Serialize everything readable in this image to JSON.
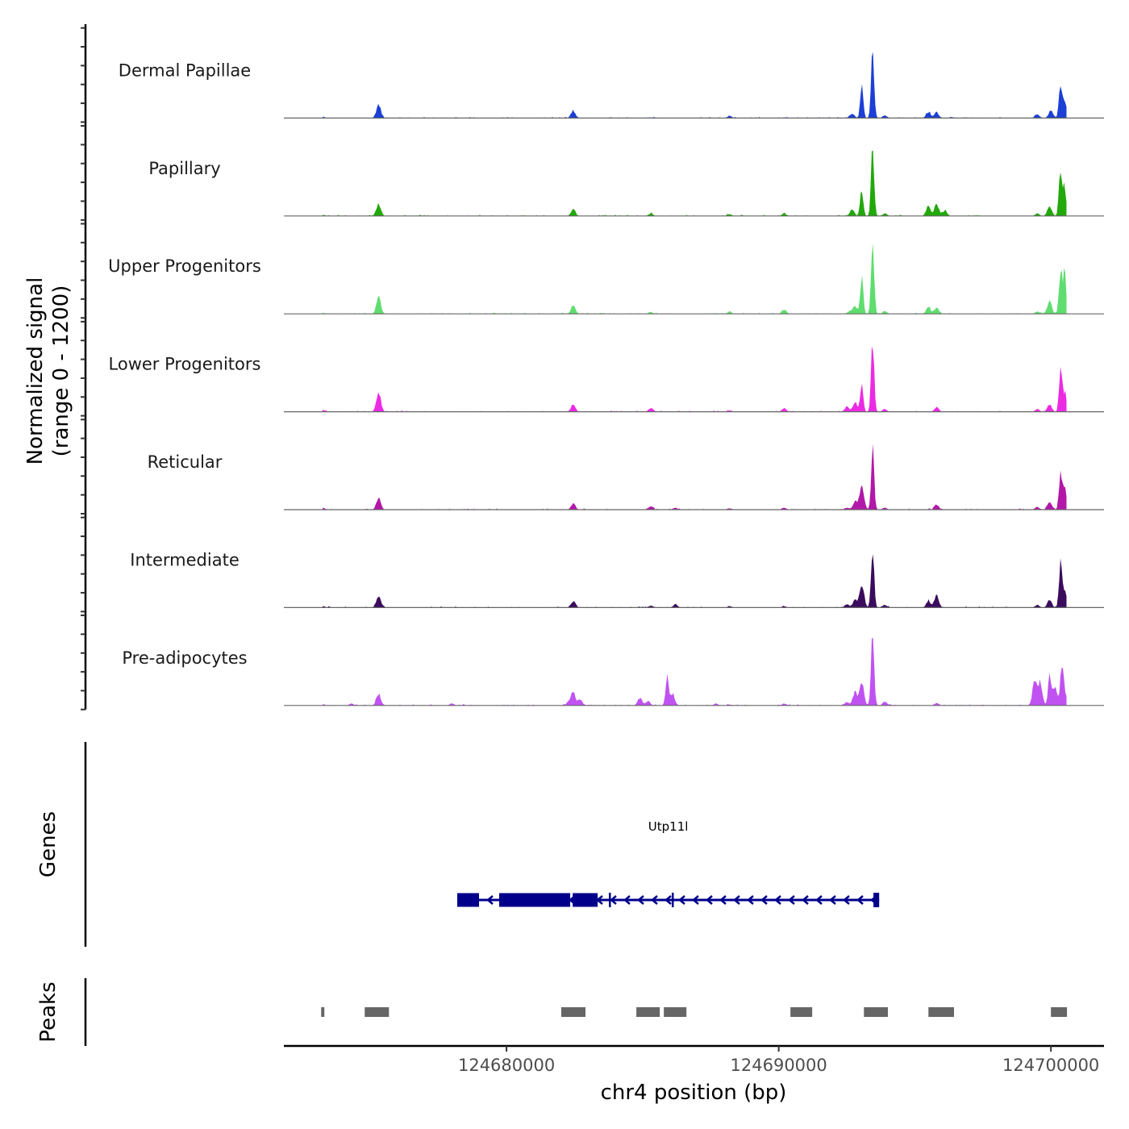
{
  "chart_data": {
    "type": "area",
    "title": "",
    "ylabel_line1": "Normalized signal",
    "ylabel_line2": "(range 0 - 1200)",
    "ylim": [
      0,
      1200
    ],
    "xlabel": "chr4 position (bp)",
    "xlim": [
      124671820,
      124701950
    ],
    "x_ticks": [
      124680000,
      124690000,
      124700000
    ],
    "x_tick_labels": [
      "124680000",
      "124690000",
      "124700000"
    ],
    "grid": false,
    "legend": "none",
    "peak_centers": [
      124673250,
      124675300,
      124682450,
      124684900,
      124685950,
      124688800,
      124690200,
      124692700,
      124693050,
      124693500,
      124694050,
      124695650,
      124696000,
      124699500,
      124699950,
      124700350
    ],
    "tracks": [
      {
        "name": "Dermal Papillae",
        "color": "#1c3fd6",
        "peaks": [
          [
            124673250,
            18
          ],
          [
            124675300,
            220
          ],
          [
            124682450,
            120
          ],
          [
            124685300,
            10
          ],
          [
            124688200,
            30
          ],
          [
            124690200,
            10
          ],
          [
            124692700,
            70
          ],
          [
            124693050,
            480
          ],
          [
            124693450,
            1060
          ],
          [
            124693900,
            40
          ],
          [
            124695500,
            100
          ],
          [
            124695800,
            90
          ],
          [
            124699500,
            60
          ],
          [
            124700000,
            120
          ],
          [
            124700350,
            540
          ],
          [
            124700500,
            260
          ]
        ]
      },
      {
        "name": "Papillary",
        "color": "#22a80a",
        "peaks": [
          [
            124673250,
            20
          ],
          [
            124675300,
            200
          ],
          [
            124682450,
            110
          ],
          [
            124685300,
            40
          ],
          [
            124688200,
            25
          ],
          [
            124690200,
            40
          ],
          [
            124692700,
            100
          ],
          [
            124693050,
            420
          ],
          [
            124693450,
            1070
          ],
          [
            124693900,
            40
          ],
          [
            124695500,
            160
          ],
          [
            124695800,
            190
          ],
          [
            124696100,
            90
          ],
          [
            124699500,
            40
          ],
          [
            124699950,
            150
          ],
          [
            124700350,
            750
          ],
          [
            124700500,
            500
          ]
        ]
      },
      {
        "name": "Upper Progenitors",
        "color": "#5fdd6f",
        "peaks": [
          [
            124673250,
            15
          ],
          [
            124675300,
            260
          ],
          [
            124682450,
            120
          ],
          [
            124685300,
            30
          ],
          [
            124688200,
            35
          ],
          [
            124690200,
            70
          ],
          [
            124692600,
            40
          ],
          [
            124692800,
            130
          ],
          [
            124693050,
            580
          ],
          [
            124693450,
            1140
          ],
          [
            124693900,
            40
          ],
          [
            124695500,
            100
          ],
          [
            124695800,
            90
          ],
          [
            124699500,
            40
          ],
          [
            124699950,
            200
          ],
          [
            124700350,
            700
          ],
          [
            124700500,
            650
          ]
        ]
      },
      {
        "name": "Lower Progenitors",
        "color": "#ec2ae4",
        "peaks": [
          [
            124673250,
            30
          ],
          [
            124675300,
            310
          ],
          [
            124682450,
            110
          ],
          [
            124685300,
            60
          ],
          [
            124688200,
            20
          ],
          [
            124690200,
            60
          ],
          [
            124692500,
            80
          ],
          [
            124692800,
            150
          ],
          [
            124693050,
            430
          ],
          [
            124693450,
            1120
          ],
          [
            124693900,
            40
          ],
          [
            124695800,
            70
          ],
          [
            124699500,
            40
          ],
          [
            124699950,
            120
          ],
          [
            124700350,
            560
          ],
          [
            124700500,
            300
          ]
        ]
      },
      {
        "name": "Reticular",
        "color": "#b317a9",
        "peaks": [
          [
            124673250,
            30
          ],
          [
            124675300,
            190
          ],
          [
            124682450,
            100
          ],
          [
            124685300,
            50
          ],
          [
            124686200,
            30
          ],
          [
            124688200,
            20
          ],
          [
            124690200,
            30
          ],
          [
            124692500,
            30
          ],
          [
            124692800,
            120
          ],
          [
            124693050,
            380
          ],
          [
            124693450,
            930
          ],
          [
            124693900,
            30
          ],
          [
            124695800,
            80
          ],
          [
            124699500,
            40
          ],
          [
            124699950,
            120
          ],
          [
            124700350,
            530
          ],
          [
            124700500,
            350
          ]
        ]
      },
      {
        "name": "Intermediate",
        "color": "#3b0c5e",
        "peaks": [
          [
            124673250,
            20
          ],
          [
            124675300,
            170
          ],
          [
            124682450,
            100
          ],
          [
            124685300,
            30
          ],
          [
            124686200,
            50
          ],
          [
            124688200,
            20
          ],
          [
            124690200,
            20
          ],
          [
            124692500,
            50
          ],
          [
            124692800,
            120
          ],
          [
            124693050,
            380
          ],
          [
            124693450,
            970
          ],
          [
            124693900,
            40
          ],
          [
            124695500,
            100
          ],
          [
            124695800,
            200
          ],
          [
            124699500,
            40
          ],
          [
            124699950,
            120
          ],
          [
            124700350,
            670
          ],
          [
            124700500,
            250
          ]
        ]
      },
      {
        "name": "Pre-adipocytes",
        "color": "#c052f2",
        "peaks": [
          [
            124673250,
            20
          ],
          [
            124674300,
            30
          ],
          [
            124675300,
            190
          ],
          [
            124678000,
            30
          ],
          [
            124682300,
            60
          ],
          [
            124682450,
            200
          ],
          [
            124682700,
            90
          ],
          [
            124684900,
            120
          ],
          [
            124685200,
            70
          ],
          [
            124685900,
            470
          ],
          [
            124686100,
            170
          ],
          [
            124687700,
            30
          ],
          [
            124688200,
            15
          ],
          [
            124690200,
            30
          ],
          [
            124692500,
            50
          ],
          [
            124692800,
            200
          ],
          [
            124693050,
            350
          ],
          [
            124693450,
            1120
          ],
          [
            124693900,
            60
          ],
          [
            124695800,
            40
          ],
          [
            124699400,
            370
          ],
          [
            124699600,
            350
          ],
          [
            124699950,
            440
          ],
          [
            124700150,
            320
          ],
          [
            124700400,
            590
          ],
          [
            124700500,
            200
          ]
        ]
      }
    ],
    "genes_track": {
      "label": "Genes",
      "genes": [
        {
          "name": "Utp11l",
          "strand": "-",
          "start": 124678190,
          "end": 124693690,
          "exons": [
            [
              124678190,
              124678990
            ],
            [
              124679730,
              124682340
            ],
            [
              124682430,
              124683350
            ],
            [
              124683760,
              124683820
            ],
            [
              124686070,
              124686130
            ],
            [
              124693480,
              124693690
            ]
          ]
        }
      ],
      "color": "#00008b"
    },
    "peaks_track": {
      "label": "Peaks",
      "color": "#666666",
      "regions": [
        [
          124673190,
          124673300
        ],
        [
          124674790,
          124675680
        ],
        [
          124682010,
          124682900
        ],
        [
          124684770,
          124685630
        ],
        [
          124685780,
          124686610
        ],
        [
          124690430,
          124691230
        ],
        [
          124693130,
          124694010
        ],
        [
          124695500,
          124696440
        ],
        [
          124700000,
          124700590
        ]
      ]
    }
  }
}
